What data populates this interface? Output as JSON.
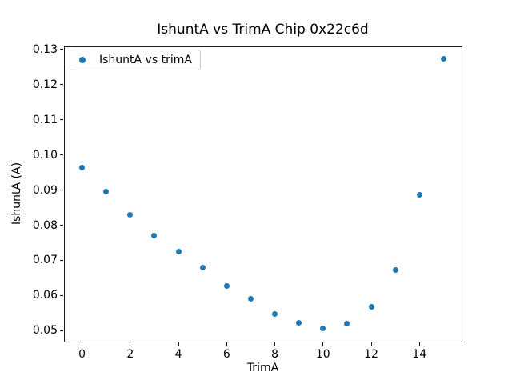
{
  "figure": {
    "background": "#ffffff",
    "text_color": "#000000",
    "spine_color": "#1a1a1a",
    "legend_border_color": "#cccccc"
  },
  "chart_data": {
    "type": "scatter",
    "title": "IshuntA vs TrimA Chip 0x22c6d",
    "xlabel": "TrimA",
    "ylabel": "IshuntA (A)",
    "legend": {
      "position": "upper-left",
      "entries": [
        "IshuntA vs trimA"
      ]
    },
    "marker_color": "#1f77b4",
    "grid": false,
    "x": [
      0,
      1,
      2,
      3,
      4,
      5,
      6,
      7,
      8,
      9,
      10,
      11,
      12,
      13,
      14,
      15
    ],
    "y": [
      0.0964,
      0.0896,
      0.083,
      0.0771,
      0.0725,
      0.0679,
      0.0628,
      0.059,
      0.0547,
      0.0522,
      0.0507,
      0.052,
      0.0568,
      0.0672,
      0.0887,
      0.1273
    ],
    "xlim": [
      -0.75,
      15.75
    ],
    "ylim": [
      0.047,
      0.131
    ],
    "x_ticks": [
      0,
      2,
      4,
      6,
      8,
      10,
      12,
      14
    ],
    "y_ticks": [
      0.05,
      0.06,
      0.07,
      0.08,
      0.09,
      0.1,
      0.11,
      0.12,
      0.13
    ]
  }
}
